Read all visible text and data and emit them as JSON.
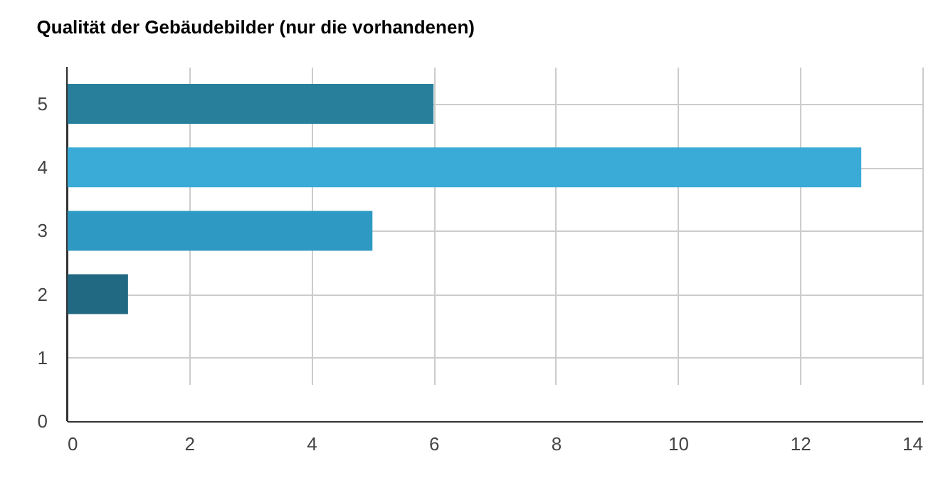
{
  "chart_data": {
    "type": "bar",
    "orientation": "horizontal",
    "title": "Qualität der Gebäudebilder (nur die vorhandenen)",
    "categories": [
      "5",
      "4",
      "3",
      "2",
      "1",
      "0"
    ],
    "values": [
      6,
      13,
      5,
      1,
      0,
      0
    ],
    "colors": [
      "#277f9c",
      "#3aabd6",
      "#2e9ac3",
      "#216882",
      "#277f9c",
      "#277f9c"
    ],
    "xlim": [
      0,
      14
    ],
    "xticks": [
      0,
      2,
      4,
      6,
      8,
      10,
      12,
      14
    ],
    "grid": true
  }
}
